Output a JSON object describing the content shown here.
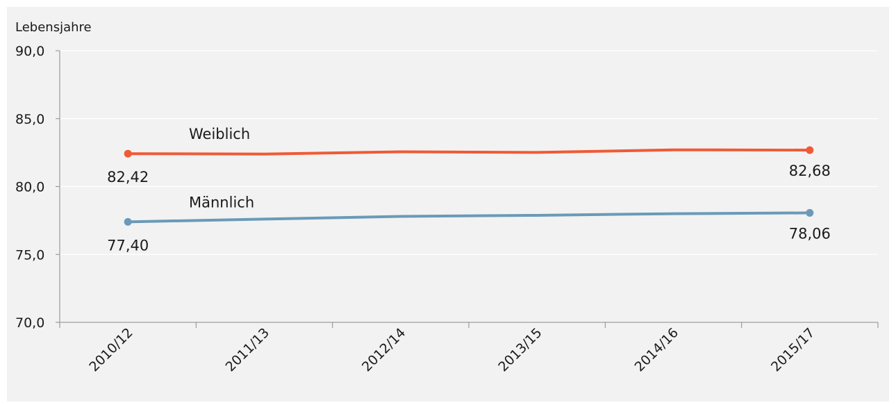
{
  "chart_data": {
    "type": "line",
    "ylabel": "Lebensjahre",
    "xlabel": "",
    "title": "",
    "categories": [
      "2010/12",
      "2011/13",
      "2012/14",
      "2013/15",
      "2014/16",
      "2015/17"
    ],
    "ylim": [
      70,
      90
    ],
    "yticks": [
      {
        "value": 70,
        "label": "70,0"
      },
      {
        "value": 75,
        "label": "75,0"
      },
      {
        "value": 80,
        "label": "80,0"
      },
      {
        "value": 85,
        "label": "85,0"
      },
      {
        "value": 90,
        "label": "90,0"
      }
    ],
    "grid": true,
    "series": [
      {
        "name": "Weiblich",
        "values": [
          82.42,
          82.39,
          82.56,
          82.51,
          82.7,
          82.68
        ],
        "color": "#f05a35",
        "start_label": "82,42",
        "end_label": "82,68"
      },
      {
        "name": "Männlich",
        "values": [
          77.4,
          77.6,
          77.8,
          77.88,
          78.0,
          78.06
        ],
        "color": "#6a9ab8",
        "start_label": "77,40",
        "end_label": "78,06"
      }
    ]
  }
}
